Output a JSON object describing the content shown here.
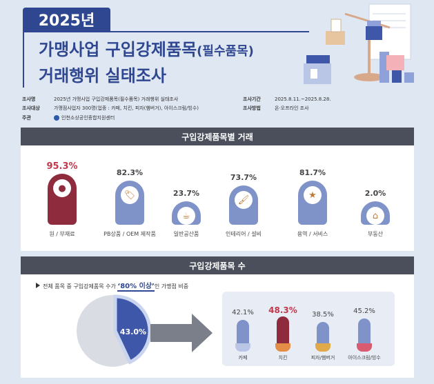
{
  "header": {
    "year": "2025년",
    "title_line1_main": "가맹사업 구입강제품목",
    "title_line1_paren": "(필수품목)",
    "title_line2": "거래행위 실태조사"
  },
  "info": {
    "survey_name_label": "조사명",
    "survey_name": "2025년 가맹사업 구입강제품목(필수품목) 거래행위 실태조사",
    "target_label": "조사대상",
    "target": "가맹점사업자 300명(업종 : 카페, 치킨, 피자(햄버거), 아이스크림/빙수)",
    "host_label": "주관",
    "host": "인천소상공인종합지원센터",
    "period_label": "조사기간",
    "period": "2025.8.11.~2025.8.28.",
    "method_label": "조사방법",
    "method": "온·오프라인 조사"
  },
  "section1": {
    "title": "구입강제품목별 거래",
    "items": [
      {
        "pct": "95.3%",
        "label": "원 / 부재료",
        "value": 95.3,
        "icon": "coffee-beans-icon",
        "glyph": "●",
        "color": "#8e2b3d"
      },
      {
        "pct": "82.3%",
        "label": "PB상품 / OEM 제작품",
        "value": 82.3,
        "icon": "tag-bag-icon",
        "glyph": "🏷",
        "color": "#7f93c9"
      },
      {
        "pct": "23.7%",
        "label": "일반공산품",
        "value": 23.7,
        "icon": "cup-icon",
        "glyph": "☕",
        "color": "#7f93c9"
      },
      {
        "pct": "73.7%",
        "label": "인테리어 / 설비",
        "value": 73.7,
        "icon": "paint-brush-icon",
        "glyph": "🖌",
        "color": "#7f93c9"
      },
      {
        "pct": "81.7%",
        "label": "용역 / 서비스",
        "value": 81.7,
        "icon": "hand-star-icon",
        "glyph": "★",
        "color": "#7f93c9"
      },
      {
        "pct": "2.0%",
        "label": "부동산",
        "value": 2.0,
        "icon": "house-icon",
        "glyph": "⌂",
        "color": "#7f93c9"
      }
    ]
  },
  "section2": {
    "title": "구입강제품목 수",
    "note_prefix": "전체 품목 중 구입강제품목 수가 ",
    "note_highlight": "‘80% 이상’",
    "note_suffix": "인 가맹점 비중",
    "pie_value": 43.0,
    "pie_label": "43.0%",
    "items": [
      {
        "pct": "42.1%",
        "label": "카페",
        "value": 42.1,
        "icon": "coffee-icon",
        "color": "#7f93c9"
      },
      {
        "pct": "48.3%",
        "label": "치킨",
        "value": 48.3,
        "icon": "chicken-icon",
        "color": "#8e2b3d"
      },
      {
        "pct": "38.5%",
        "label": "피자/햄버거",
        "value": 38.5,
        "icon": "pizza-burger-icon",
        "color": "#7f93c9"
      },
      {
        "pct": "45.2%",
        "label": "아이스크림/빙수",
        "value": 45.2,
        "icon": "ice-cream-icon",
        "color": "#7f93c9"
      }
    ]
  }
}
